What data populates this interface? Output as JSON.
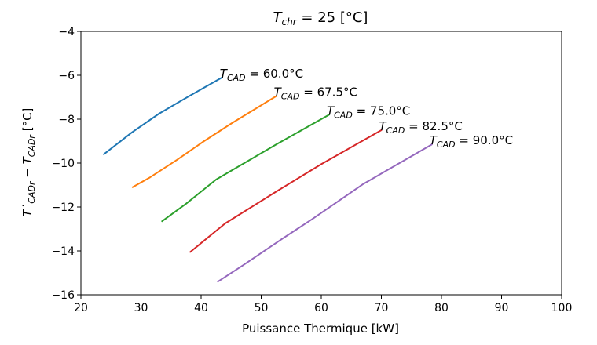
{
  "chart_data": {
    "type": "line",
    "title": "T_chr = 25 [°C]",
    "xlabel": "Puissance Thermique [kW]",
    "ylabel": "T˙CADr − TCADr [°C]",
    "xlim": [
      20,
      100
    ],
    "ylim": [
      -16,
      -4
    ],
    "xticks": [
      20,
      30,
      40,
      50,
      60,
      70,
      80,
      90,
      100
    ],
    "yticks": [
      -4,
      -6,
      -8,
      -10,
      -12,
      -14,
      -16
    ],
    "xtick_labels": [
      "20",
      "30",
      "40",
      "50",
      "60",
      "70",
      "80",
      "90",
      "100"
    ],
    "ytick_labels": [
      "−4",
      "−6",
      "−8",
      "−10",
      "−12",
      "−14",
      "−16"
    ],
    "grid": false,
    "legend": "none",
    "series": [
      {
        "label_main": "T",
        "label_sub": "CAD",
        "label_rest": " = 60.0°C",
        "color": "#1f77b4",
        "x": [
          23.8,
          28.5,
          33,
          38,
          43.5
        ],
        "y": [
          -9.6,
          -8.6,
          -7.75,
          -6.95,
          -6.1
        ]
      },
      {
        "label_main": "T",
        "label_sub": "CAD",
        "label_rest": " = 67.5°C",
        "color": "#ff7f0e",
        "x": [
          28.6,
          31.5,
          36,
          40.5,
          45,
          52.5
        ],
        "y": [
          -11.1,
          -10.65,
          -9.85,
          -9.0,
          -8.2,
          -6.95
        ]
      },
      {
        "label_main": "T",
        "label_sub": "CAD",
        "label_rest": " = 75.0°C",
        "color": "#2ca02c",
        "x": [
          33.5,
          37.5,
          42.5,
          52.5,
          61.3
        ],
        "y": [
          -12.65,
          -11.85,
          -10.75,
          -9.15,
          -7.8
        ]
      },
      {
        "label_main": "T",
        "label_sub": "CAD",
        "label_rest": " = 82.5°C",
        "color": "#d62728",
        "x": [
          38.2,
          44,
          52.5,
          60,
          70
        ],
        "y": [
          -14.05,
          -12.75,
          -11.3,
          -10.05,
          -8.5
        ]
      },
      {
        "label_main": "T",
        "label_sub": "CAD",
        "label_rest": " = 90.0°C",
        "color": "#9467bd",
        "x": [
          42.8,
          47,
          53.5,
          58.5,
          67,
          78.4
        ],
        "y": [
          -15.4,
          -14.65,
          -13.45,
          -12.55,
          -10.95,
          -9.15
        ]
      }
    ]
  }
}
